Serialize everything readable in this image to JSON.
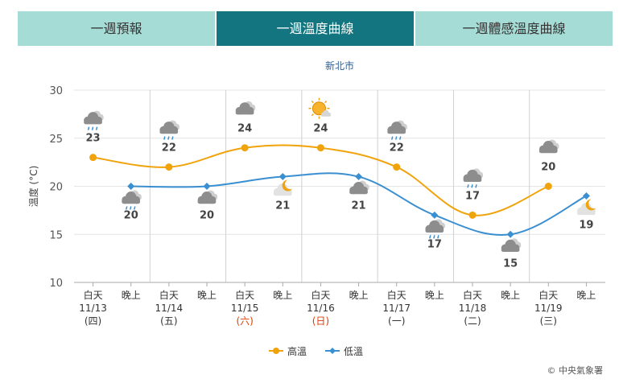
{
  "tabs": [
    {
      "label": "一週預報",
      "active": false
    },
    {
      "label": "一週溫度曲線",
      "active": true
    },
    {
      "label": "一週體感溫度曲線",
      "active": false
    }
  ],
  "copyright": "© 中央氣象署",
  "colors": {
    "high": "#f0a30a",
    "low": "#3a8fd1",
    "tab_active": "#13757f",
    "tab_inactive": "#a6dcd6",
    "weekend": "#e03c00",
    "title": "#2a5f9e"
  },
  "chart_data": {
    "type": "line",
    "title": "新北市",
    "ylabel": "溫度 (°C)",
    "ylim": [
      10,
      30
    ],
    "yticks": [
      10,
      15,
      20,
      25,
      30
    ],
    "slots": [
      "白天",
      "晚上",
      "白天",
      "晚上",
      "白天",
      "晚上",
      "白天",
      "晚上",
      "白天",
      "晚上",
      "白天",
      "晚上",
      "白天",
      "晚上"
    ],
    "dates": [
      "11/13",
      "11/14",
      "11/15",
      "11/16",
      "11/17",
      "11/18",
      "11/19"
    ],
    "weekdays": [
      "(四)",
      "(五)",
      "(六)",
      "(日)",
      "(一)",
      "(二)",
      "(三)"
    ],
    "weekend_days": [
      "(六)",
      "(日)"
    ],
    "series": [
      {
        "name": "高溫",
        "slot_indices": [
          0,
          2,
          4,
          6,
          8,
          10,
          12
        ],
        "values": [
          23,
          22,
          24,
          24,
          22,
          17,
          20
        ]
      },
      {
        "name": "低溫",
        "slot_indices": [
          1,
          3,
          5,
          7,
          9,
          11,
          13
        ],
        "values": [
          20,
          20,
          21,
          21,
          17,
          15,
          19
        ]
      }
    ],
    "weather_icons": [
      "cloud-rain-icon",
      "cloud-rain-icon",
      "cloud-rain-icon",
      "cloud-icon",
      "cloud-icon",
      "cloud-moon-icon",
      "sun-cloud-icon",
      "cloud-icon",
      "cloud-rain-icon",
      "cloud-rain-icon",
      "cloud-rain-icon",
      "cloud-icon",
      "cloud-icon",
      "cloud-moon-icon"
    ],
    "legend_position": "bottom-center",
    "grid": true
  }
}
